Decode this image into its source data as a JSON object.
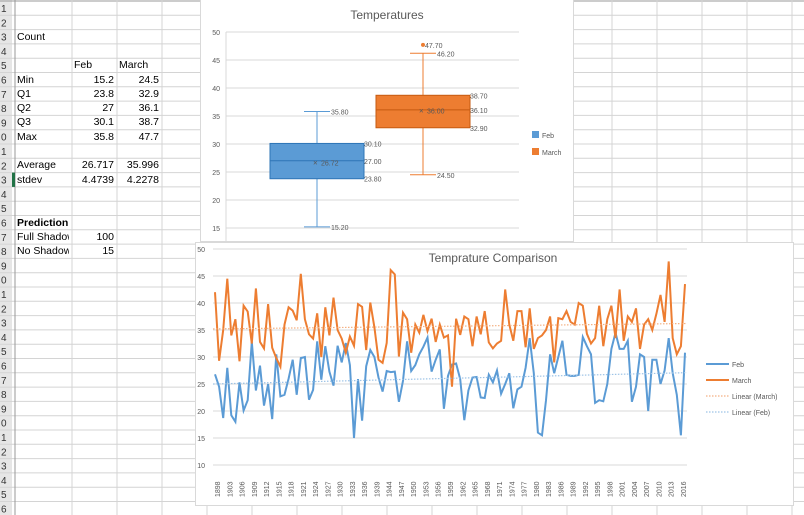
{
  "sheet": {
    "row_numbers": [
      "1",
      "2",
      "3",
      "4",
      "5",
      "6",
      "7",
      "8",
      "9",
      "0",
      "1",
      "2",
      "3",
      "4",
      "5",
      "6",
      "7",
      "8",
      "9",
      "0",
      "1",
      "2",
      "3",
      "4",
      "5",
      "6",
      "7",
      "8",
      "9",
      "0",
      "1",
      "2",
      "3",
      "4",
      "5",
      "6",
      "7"
    ],
    "count_label": "Count",
    "headers": [
      "Feb",
      "March"
    ],
    "stats": [
      {
        "label": "Min",
        "feb": "15.2",
        "march": "24.5"
      },
      {
        "label": "Q1",
        "feb": "23.8",
        "march": "32.9"
      },
      {
        "label": "Q2",
        "feb": "27",
        "march": "36.1"
      },
      {
        "label": "Q3",
        "feb": "30.1",
        "march": "38.7"
      },
      {
        "label": "Max",
        "feb": "35.8",
        "march": "47.7"
      }
    ],
    "average": {
      "label": "Average",
      "feb": "26.717",
      "march": "35.996"
    },
    "stdev": {
      "label": "stdev",
      "feb": "4.4739",
      "march": "4.2278"
    },
    "prediction": {
      "title": "Prediction",
      "rows": [
        {
          "label": "Full Shadow",
          "value": "100"
        },
        {
          "label": "No Shadow",
          "value": "15"
        }
      ]
    }
  },
  "chart_data": [
    {
      "type": "box",
      "title": "Temperatures",
      "ylim": [
        15,
        50
      ],
      "yticks": [
        "15",
        "20",
        "25",
        "30",
        "35",
        "40",
        "45",
        "50"
      ],
      "legend": [
        "Feb",
        "March"
      ],
      "legend_position": "right",
      "colors": {
        "Feb": "#5b9bd5",
        "March": "#ed7d31"
      },
      "series": [
        {
          "name": "Feb",
          "min": 15.2,
          "q1": 23.8,
          "median": 27.0,
          "q3": 30.1,
          "max": 35.8,
          "mean": 26.72,
          "outliers": [],
          "labels": {
            "min": "15.20",
            "q1": "23.80",
            "median": "27.00",
            "q3": "30.10",
            "max": "35.80",
            "mean": "26.72"
          }
        },
        {
          "name": "March",
          "min": 24.5,
          "q1": 32.9,
          "median": 36.1,
          "q3": 38.7,
          "max": 46.2,
          "mean": 36.0,
          "outliers": [
            47.7
          ],
          "labels": {
            "min": "24.50",
            "q1": "32.90",
            "median": "36.10",
            "q3": "38.70",
            "max": "46.20",
            "mean": "36.00",
            "outlier": "47.70"
          }
        }
      ]
    },
    {
      "type": "line",
      "title": "Temprature Comparison",
      "ylim": [
        10,
        50
      ],
      "yticks": [
        "10",
        "15",
        "20",
        "25",
        "30",
        "35",
        "40",
        "45",
        "50"
      ],
      "xticks": [
        "1898",
        "1903",
        "1906",
        "1909",
        "1912",
        "1915",
        "1918",
        "1921",
        "1924",
        "1927",
        "1930",
        "1933",
        "1936",
        "1939",
        "1944",
        "1947",
        "1950",
        "1953",
        "1956",
        "1959",
        "1962",
        "1965",
        "1968",
        "1971",
        "1974",
        "1977",
        "1980",
        "1983",
        "1986",
        "1989",
        "1992",
        "1995",
        "1998",
        "2001",
        "2004",
        "2007",
        "2010",
        "2013",
        "2016"
      ],
      "legend": [
        "Feb",
        "March",
        "Linear (March)",
        "Linear (Feb)"
      ],
      "legend_position": "right",
      "series": [
        {
          "name": "Feb",
          "color": "#5b9bd5",
          "values": [
            26.8,
            24.5,
            18.7,
            28,
            19.2,
            18,
            25.3,
            20.1,
            22,
            32.8,
            23.8,
            28.4,
            21,
            25,
            18.5,
            30.5,
            22.7,
            23,
            26,
            29.5,
            23,
            29.8,
            30,
            22.1,
            23.9,
            32.9,
            25.8,
            32,
            27.3,
            24.7,
            32.1,
            29,
            32.6,
            28.5,
            15,
            25.9,
            18.2,
            28.3,
            31.3,
            30,
            26.2,
            23.6,
            27.4,
            27.2,
            27.3,
            21.7,
            25.6,
            32.9,
            27.4,
            28.5,
            30.5,
            31.9,
            33.6,
            27.3,
            29.5,
            31.4,
            20.4,
            26.5,
            28.6,
            28.8,
            25.9,
            18.3,
            23.8,
            26.2,
            26.3,
            22.5,
            22.4,
            26.7,
            25.3,
            27.5,
            23.2,
            25,
            27,
            20.5,
            24,
            24.5,
            28,
            33.5,
            27,
            16,
            15.5,
            22,
            30.5,
            27,
            30,
            33,
            26.7,
            26.5,
            26.5,
            26.7,
            33.7,
            32,
            30.5,
            21.5,
            22,
            21.8,
            25,
            31.5,
            34.5,
            31.5,
            31.5,
            33,
            21.7,
            24.5,
            30.5,
            30,
            20,
            29.5,
            29.5,
            25,
            27.5,
            33.5,
            27,
            23,
            15.5,
            30.8
          ]
        },
        {
          "name": "March",
          "color": "#ed7d31",
          "values": [
            42,
            29.3,
            35,
            44.5,
            34,
            37,
            29.2,
            39.5,
            38.4,
            32.5,
            42.7,
            32.8,
            31.6,
            39.8,
            31.7,
            29.8,
            28.2,
            36,
            39.2,
            38.6,
            36.8,
            45.4,
            37,
            34.2,
            33.4,
            38.1,
            30,
            39.2,
            34,
            41,
            35,
            33.4,
            30.8,
            33.8,
            32.1,
            39.8,
            39.3,
            31.3,
            40.1,
            35.5,
            29.5,
            28.9,
            32.6,
            46.1,
            45.3,
            30.1,
            38.2,
            37,
            30.8,
            36,
            34.5,
            37.8,
            34.8,
            37.1,
            32.8,
            36,
            33.6,
            34,
            24.5,
            37.1,
            34.1,
            37.5,
            37,
            32,
            37.5,
            34.2,
            38.5,
            32.7,
            31.6,
            32.5,
            33,
            42.5,
            36,
            33,
            38.5,
            38.5,
            31.8,
            39,
            31.5,
            33.5,
            34,
            35,
            37.5,
            29,
            37.2,
            37,
            38.5,
            36.5,
            36,
            40,
            39.5,
            34.3,
            32.5,
            33.5,
            39.5,
            32,
            37,
            39.5,
            33.5,
            42.5,
            33,
            37.5,
            36.5,
            39,
            31.5,
            36,
            37,
            35,
            38,
            41.5,
            36.5,
            47.7,
            33.5,
            30.5,
            32,
            43.5
          ]
        },
        {
          "name": "Linear (March)",
          "color": "#f4b183",
          "trend": [
            35.2,
            36.2
          ]
        },
        {
          "name": "Linear (Feb)",
          "color": "#9dc3e6",
          "trend": [
            25.0,
            27.1
          ]
        }
      ]
    }
  ]
}
